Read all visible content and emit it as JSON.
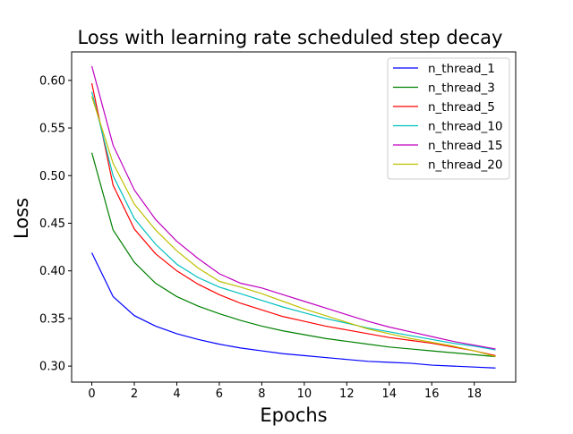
{
  "chart_data": {
    "type": "line",
    "title": "Loss with learning rate scheduled step decay",
    "xlabel": "Epochs",
    "ylabel": "Loss",
    "xlim": [
      -0.95,
      19.95
    ],
    "ylim": [
      0.2832,
      0.6299
    ],
    "xticks": [
      0,
      2,
      4,
      6,
      8,
      10,
      12,
      14,
      16,
      18
    ],
    "yticks": [
      0.3,
      0.35,
      0.4,
      0.45,
      0.5,
      0.55,
      0.6
    ],
    "ytick_labels": [
      "0.30",
      "0.35",
      "0.40",
      "0.45",
      "0.50",
      "0.55",
      "0.60"
    ],
    "grid": false,
    "legend_position": "top-right",
    "x": [
      0,
      1,
      2,
      3,
      4,
      5,
      6,
      7,
      8,
      9,
      10,
      11,
      12,
      13,
      14,
      15,
      16,
      17,
      18,
      19
    ],
    "series": [
      {
        "name": "n_thread_1",
        "color": "#0000ff",
        "values": [
          0.419,
          0.373,
          0.353,
          0.342,
          0.334,
          0.328,
          0.323,
          0.319,
          0.316,
          0.313,
          0.311,
          0.309,
          0.307,
          0.305,
          0.304,
          0.303,
          0.301,
          0.3,
          0.299,
          0.298
        ]
      },
      {
        "name": "n_thread_3",
        "color": "#008000",
        "values": [
          0.524,
          0.443,
          0.409,
          0.387,
          0.373,
          0.363,
          0.355,
          0.348,
          0.342,
          0.337,
          0.333,
          0.329,
          0.326,
          0.323,
          0.32,
          0.318,
          0.316,
          0.314,
          0.312,
          0.31
        ]
      },
      {
        "name": "n_thread_5",
        "color": "#ff0000",
        "values": [
          0.597,
          0.49,
          0.444,
          0.418,
          0.4,
          0.386,
          0.375,
          0.366,
          0.359,
          0.352,
          0.347,
          0.342,
          0.338,
          0.334,
          0.33,
          0.327,
          0.324,
          0.32,
          0.316,
          0.311
        ]
      },
      {
        "name": "n_thread_10",
        "color": "#00bfbf",
        "values": [
          0.588,
          0.5,
          0.455,
          0.428,
          0.407,
          0.393,
          0.383,
          0.376,
          0.369,
          0.362,
          0.356,
          0.35,
          0.345,
          0.34,
          0.336,
          0.332,
          0.328,
          0.324,
          0.321,
          0.317
        ]
      },
      {
        "name": "n_thread_15",
        "color": "#bf00bf",
        "values": [
          0.615,
          0.532,
          0.485,
          0.454,
          0.431,
          0.413,
          0.397,
          0.387,
          0.382,
          0.375,
          0.368,
          0.361,
          0.354,
          0.347,
          0.341,
          0.336,
          0.331,
          0.326,
          0.322,
          0.318
        ]
      },
      {
        "name": "n_thread_20",
        "color": "#bfbf00",
        "values": [
          0.583,
          0.513,
          0.47,
          0.443,
          0.421,
          0.403,
          0.389,
          0.383,
          0.376,
          0.368,
          0.36,
          0.353,
          0.346,
          0.339,
          0.334,
          0.329,
          0.325,
          0.321,
          0.316,
          0.31
        ]
      }
    ]
  }
}
